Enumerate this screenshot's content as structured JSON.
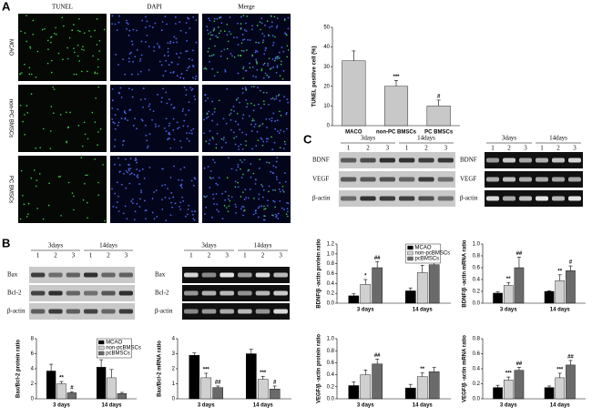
{
  "figure": {
    "panel_labels": [
      "A",
      "B",
      "C"
    ]
  },
  "micrographs": {
    "columns": [
      "TUNEL",
      "DAPI",
      "Merge"
    ],
    "rows": [
      "MCAO",
      "non-PC BMSCs",
      "PC BMSCs"
    ]
  },
  "blots": [
    {
      "time_labels": [
        "3days",
        "14days"
      ],
      "lanes": [
        "1",
        "2",
        "3",
        "1",
        "2",
        "3"
      ],
      "rows": [
        "Bax",
        "Bcl-2",
        "β-actin"
      ]
    },
    {
      "time_labels": [
        "3days",
        "14days"
      ],
      "lanes": [
        "1",
        "2",
        "3",
        "1",
        "2",
        "3"
      ],
      "rows": [
        "Bax",
        "Bcl-2",
        "β-actin"
      ]
    },
    {
      "time_labels": [
        "3days",
        "14days"
      ],
      "lanes": [
        "1",
        "2",
        "3",
        "1",
        "2",
        "3"
      ],
      "rows": [
        "BDNF",
        "VEGF",
        "β-actin"
      ]
    },
    {
      "time_labels": [
        "3days",
        "14days"
      ],
      "lanes": [
        "1",
        "2",
        "3",
        "1",
        "2",
        "3"
      ],
      "rows": [
        "BDNF",
        "VEGF",
        "β-actin"
      ]
    }
  ],
  "chart_data": [
    {
      "type": "bar",
      "y_label": "TUNEL positive cell (%)",
      "categories": [
        "MACO",
        "non-PC BMSCs",
        "PC BMSCs"
      ],
      "ylim": [
        0,
        50
      ],
      "yticks": [
        0,
        10,
        20,
        30,
        40,
        50
      ],
      "series": [
        {
          "color": "#c8c8c8",
          "values": [
            33,
            20,
            10
          ],
          "errors": [
            5,
            3,
            3
          ],
          "sig": [
            null,
            "***",
            "#"
          ]
        }
      ]
    },
    {
      "type": "bar",
      "y_label": "Bax/Bcl-2 protein ratio",
      "categories": [
        "3 days",
        "14 days"
      ],
      "ylim": [
        0,
        8
      ],
      "yticks": [
        0,
        2,
        4,
        6,
        8
      ],
      "legend": true,
      "series": [
        {
          "name": "MCAO",
          "color": "#000000",
          "values": [
            3.7,
            4.2
          ],
          "errors": [
            0.9,
            1.0
          ],
          "sig": [
            null,
            null
          ]
        },
        {
          "name": "non-pcBMSCs",
          "color": "#d0d0d0",
          "values": [
            2.0,
            2.8
          ],
          "errors": [
            0.3,
            1.1
          ],
          "sig": [
            "**",
            null
          ]
        },
        {
          "name": "pcBMSCs",
          "color": "#6a6a6a",
          "values": [
            0.8,
            0.7
          ],
          "errors": [
            0.15,
            0.15
          ],
          "sig": [
            "#",
            null
          ]
        }
      ]
    },
    {
      "type": "bar",
      "y_label": "Bax/Bcl-2 mRNA ratio",
      "categories": [
        "3 days",
        "14 days"
      ],
      "ylim": [
        0,
        4
      ],
      "yticks": [
        0,
        1,
        2,
        3,
        4
      ],
      "series": [
        {
          "color": "#000000",
          "values": [
            2.9,
            3.0
          ],
          "errors": [
            0.15,
            0.3
          ],
          "sig": [
            null,
            null
          ]
        },
        {
          "color": "#d0d0d0",
          "values": [
            1.4,
            1.3
          ],
          "errors": [
            0.3,
            0.2
          ],
          "sig": [
            "***",
            "***"
          ]
        },
        {
          "color": "#6a6a6a",
          "values": [
            0.75,
            0.65
          ],
          "errors": [
            0.1,
            0.2
          ],
          "sig": [
            "##",
            "#"
          ]
        }
      ]
    },
    {
      "type": "bar",
      "y_label": "BDNF/β -actin protein ratio",
      "categories": [
        "3 days",
        "14 days"
      ],
      "ylim": [
        0,
        1.2
      ],
      "yticks": [
        {
          "value": 0,
          "label": "0.0"
        },
        {
          "value": 0.2,
          "label": "0.2"
        },
        {
          "value": 0.4,
          "label": "0.4"
        },
        {
          "value": 0.6,
          "label": "0.6"
        },
        {
          "value": 0.8,
          "label": "0.8"
        },
        {
          "value": 1,
          "label": "1.0"
        },
        {
          "value": 1.2,
          "label": "1.2"
        }
      ],
      "legend": true,
      "series": [
        {
          "name": "MCAO",
          "color": "#000000",
          "values": [
            0.15,
            0.25
          ],
          "errors": [
            0.04,
            0.06
          ],
          "sig": [
            null,
            null
          ]
        },
        {
          "name": "non-pcBMSCs",
          "color": "#d0d0d0",
          "values": [
            0.38,
            0.62
          ],
          "errors": [
            0.1,
            0.15
          ],
          "sig": [
            "*",
            "**"
          ]
        },
        {
          "name": "pcBMSCs",
          "color": "#6a6a6a",
          "values": [
            0.72,
            0.78
          ],
          "errors": [
            0.12,
            0.1
          ],
          "sig": [
            "##",
            null
          ]
        }
      ]
    },
    {
      "type": "bar",
      "y_label": "BDNF/β -actin mRNA ratio",
      "categories": [
        "3 days",
        "14 days"
      ],
      "ylim": [
        0,
        1
      ],
      "yticks": [
        {
          "value": 0,
          "label": "0.0"
        },
        {
          "value": 0.2,
          "label": "0.2"
        },
        {
          "value": 0.4,
          "label": "0.4"
        },
        {
          "value": 0.6,
          "label": "0.6"
        },
        {
          "value": 0.8,
          "label": "0.8"
        },
        {
          "value": 1,
          "label": "1.0"
        }
      ],
      "series": [
        {
          "color": "#000000",
          "values": [
            0.17,
            0.2
          ],
          "errors": [
            0.02,
            0.01
          ],
          "sig": [
            null,
            null
          ]
        },
        {
          "color": "#d0d0d0",
          "values": [
            0.3,
            0.38
          ],
          "errors": [
            0.05,
            0.1
          ],
          "sig": [
            "**",
            "**"
          ]
        },
        {
          "color": "#6a6a6a",
          "values": [
            0.6,
            0.55
          ],
          "errors": [
            0.18,
            0.08
          ],
          "sig": [
            "##",
            "#"
          ]
        }
      ]
    },
    {
      "type": "bar",
      "y_label": "VEGF/β -actin protein ratio",
      "categories": [
        "3 days",
        "14 days"
      ],
      "ylim": [
        0,
        1
      ],
      "yticks": [
        {
          "value": 0,
          "label": "0.0"
        },
        {
          "value": 0.2,
          "label": "0.2"
        },
        {
          "value": 0.4,
          "label": "0.4"
        },
        {
          "value": 0.6,
          "label": "0.6"
        },
        {
          "value": 0.8,
          "label": "0.8"
        },
        {
          "value": 1,
          "label": "1.0"
        }
      ],
      "series": [
        {
          "color": "#000000",
          "values": [
            0.22,
            0.18
          ],
          "errors": [
            0.06,
            0.06
          ],
          "sig": [
            null,
            null
          ]
        },
        {
          "color": "#d0d0d0",
          "values": [
            0.4,
            0.37
          ],
          "errors": [
            0.08,
            0.06
          ],
          "sig": [
            null,
            "**"
          ]
        },
        {
          "color": "#6a6a6a",
          "values": [
            0.58,
            0.45
          ],
          "errors": [
            0.08,
            0.07
          ],
          "sig": [
            "##",
            null
          ]
        }
      ]
    },
    {
      "type": "bar",
      "y_label": "VEGF/β -actin mRNA ratio",
      "categories": [
        "3 days",
        "14 days"
      ],
      "ylim": [
        0,
        0.8
      ],
      "yticks": [
        {
          "value": 0,
          "label": "0.0"
        },
        {
          "value": 0.2,
          "label": "0.2"
        },
        {
          "value": 0.4,
          "label": "0.4"
        },
        {
          "value": 0.6,
          "label": "0.6"
        },
        {
          "value": 0.8,
          "label": "0.8"
        }
      ],
      "series": [
        {
          "color": "#000000",
          "values": [
            0.15,
            0.15
          ],
          "errors": [
            0.03,
            0.02
          ],
          "sig": [
            null,
            null
          ]
        },
        {
          "color": "#d0d0d0",
          "values": [
            0.25,
            0.28
          ],
          "errors": [
            0.04,
            0.06
          ],
          "sig": [
            "***",
            "***"
          ]
        },
        {
          "color": "#6a6a6a",
          "values": [
            0.38,
            0.45
          ],
          "errors": [
            0.04,
            0.06
          ],
          "sig": [
            "##",
            "##"
          ]
        }
      ]
    }
  ]
}
